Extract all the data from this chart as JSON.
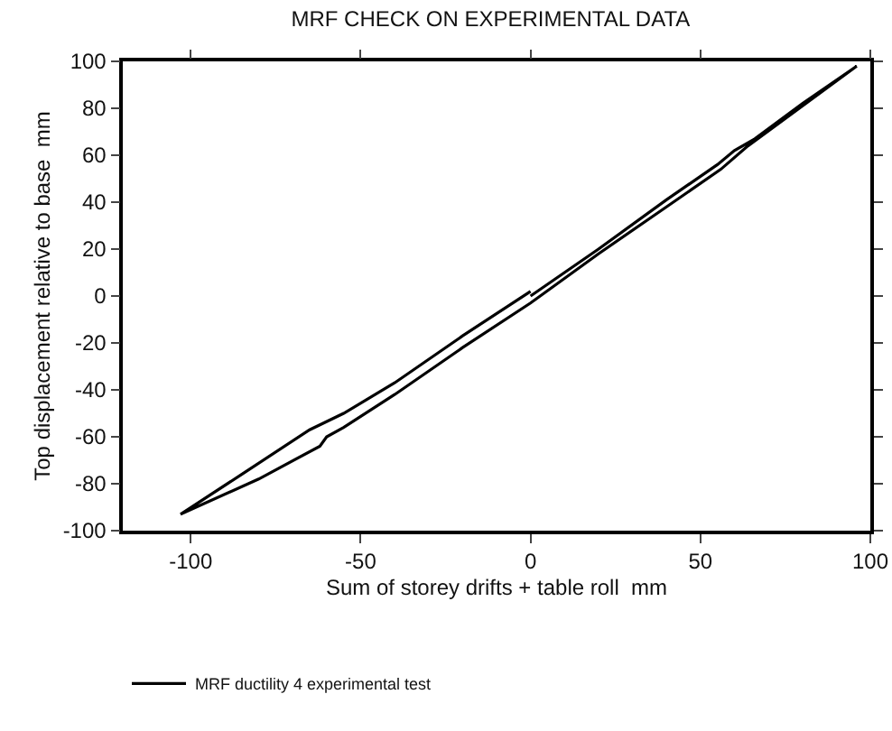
{
  "chart_data": {
    "type": "line",
    "title": "MRF CHECK ON EXPERIMENTAL DATA",
    "xlabel": "Sum of storey drifts + table roll  mm",
    "ylabel": "Top displacement relative to base  mm",
    "series": [
      {
        "name": "MRF ductility 4 experimental test",
        "color": "#000000",
        "x": [
          0,
          20,
          40,
          55,
          60,
          66,
          80,
          96,
          80,
          64,
          56,
          40,
          20,
          0,
          -20,
          -40,
          -55,
          -60,
          -62,
          -80,
          -103,
          -85,
          -65,
          -55,
          -40,
          -20,
          0
        ],
        "values": [
          0,
          20,
          41,
          56,
          62,
          67,
          82,
          98,
          81,
          64,
          54,
          38,
          18,
          -3,
          -22,
          -42,
          -56,
          -60,
          -64,
          -78,
          -93,
          -76,
          -57,
          -50,
          -37,
          -17,
          2
        ]
      }
    ],
    "xlim": [
      -120,
      100
    ],
    "ylim": [
      -100,
      100
    ],
    "xticks": [
      -100,
      -50,
      0,
      50,
      100
    ],
    "yticks": [
      -100,
      -80,
      -60,
      -40,
      -20,
      0,
      20,
      40,
      60,
      80,
      100
    ],
    "grid": false,
    "legend": "bottom",
    "marker": "none",
    "line_style": "solid"
  }
}
